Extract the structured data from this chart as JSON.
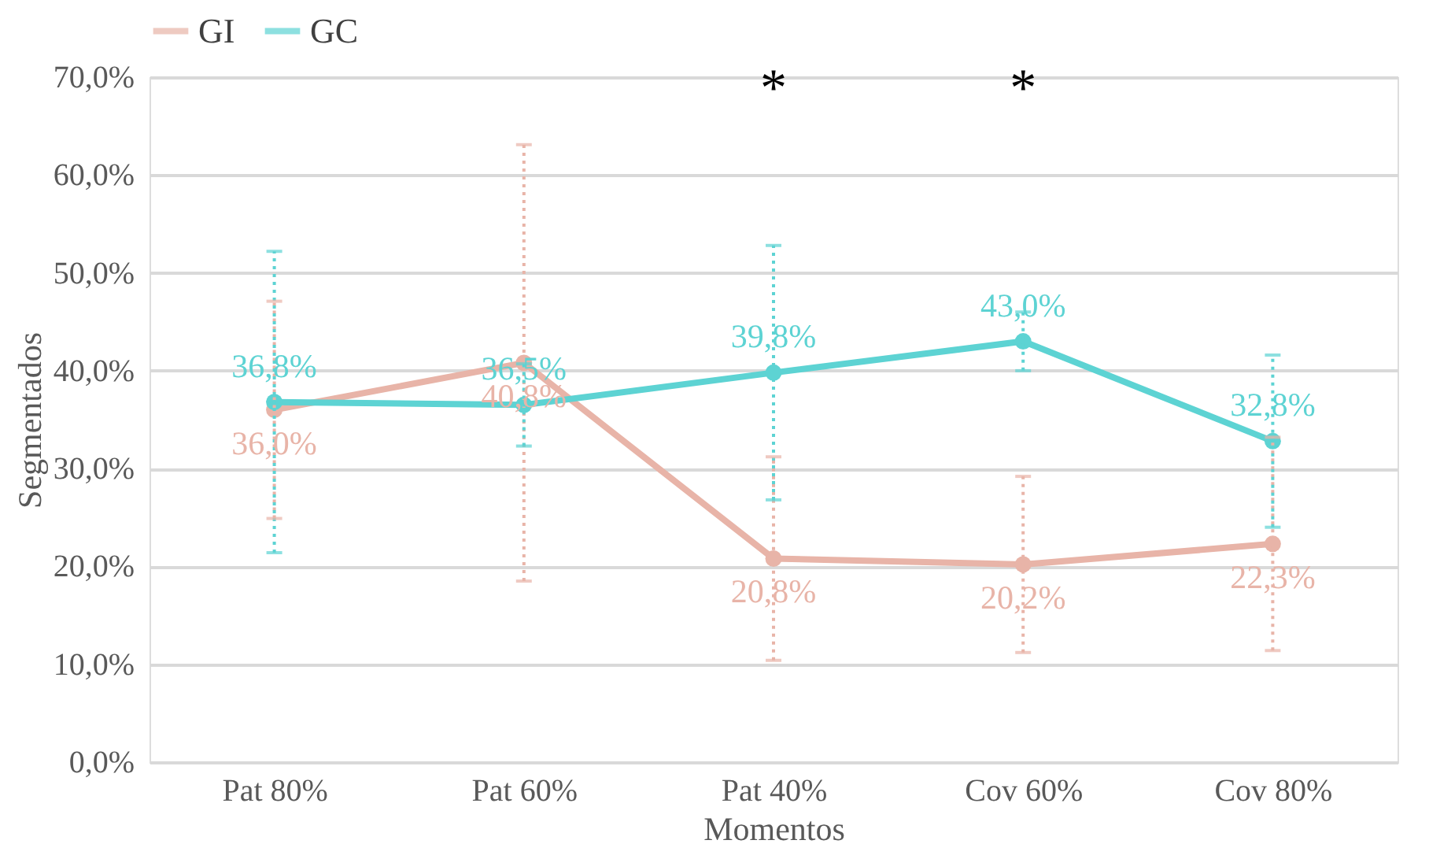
{
  "chart_data": {
    "type": "line",
    "xlabel": "Momentos",
    "ylabel": "Segmentados",
    "categories": [
      "Pat 80%",
      "Pat 60%",
      "Pat 40%",
      "Cov 60%",
      "Cov 80%"
    ],
    "series": [
      {
        "name": "GI",
        "color": "#e8b4a8",
        "values": [
          36.0,
          40.8,
          20.8,
          20.2,
          22.3
        ],
        "errors": [
          11.1,
          22.3,
          10.4,
          9.0,
          10.9
        ],
        "value_labels": [
          "36,0%",
          "40,8%",
          "20,8%",
          "20,2%",
          "22,3%"
        ]
      },
      {
        "name": "GC",
        "color": "#5dd3d3",
        "values": [
          36.8,
          36.5,
          39.8,
          43.0,
          32.8
        ],
        "errors": [
          15.4,
          4.2,
          13.0,
          3.0,
          8.8
        ],
        "value_labels": [
          "36,8%",
          "36,5%",
          "39,8%",
          "43,0%",
          "32,8%"
        ]
      }
    ],
    "ylim": [
      0,
      70
    ],
    "yticks": [
      {
        "value": 0,
        "label": "0,0%"
      },
      {
        "value": 10,
        "label": "10,0%"
      },
      {
        "value": 20,
        "label": "20,0%"
      },
      {
        "value": 30,
        "label": "30,0%"
      },
      {
        "value": 40,
        "label": "40,0%"
      },
      {
        "value": 50,
        "label": "50,0%"
      },
      {
        "value": 60,
        "label": "60,0%"
      },
      {
        "value": 70,
        "label": "70,0%"
      }
    ],
    "annotations": [
      "*",
      "*"
    ],
    "grid": "y",
    "legend": "top",
    "marker": "circle",
    "line_style": "solid"
  }
}
